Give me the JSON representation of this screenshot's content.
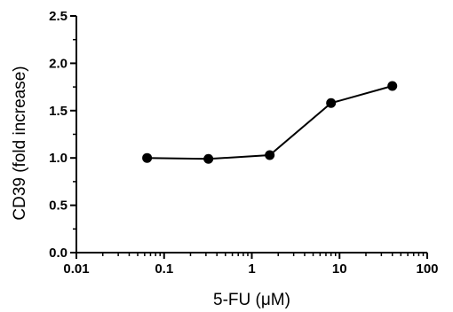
{
  "chart_data": {
    "type": "line",
    "title": "",
    "xlabel": "5-FU (μM)",
    "ylabel": "CD39 (fold increase)",
    "xscale": "log",
    "xlim": [
      0.01,
      100
    ],
    "ylim": [
      0.0,
      2.5
    ],
    "xticks": [
      0.01,
      0.1,
      1,
      10,
      100
    ],
    "xtick_labels": [
      "0.01",
      "0.1",
      "1",
      "10",
      "100"
    ],
    "yticks": [
      0.0,
      0.5,
      1.0,
      1.5,
      2.0,
      2.5
    ],
    "ytick_labels": [
      "0.0",
      "0.5",
      "1.0",
      "1.5",
      "2.0",
      "2.5"
    ],
    "grid": false,
    "series": [
      {
        "color": "#000000",
        "x": [
          0.064,
          0.32,
          1.6,
          8,
          40
        ],
        "y": [
          1.0,
          0.99,
          1.03,
          1.58,
          1.76
        ]
      }
    ]
  }
}
